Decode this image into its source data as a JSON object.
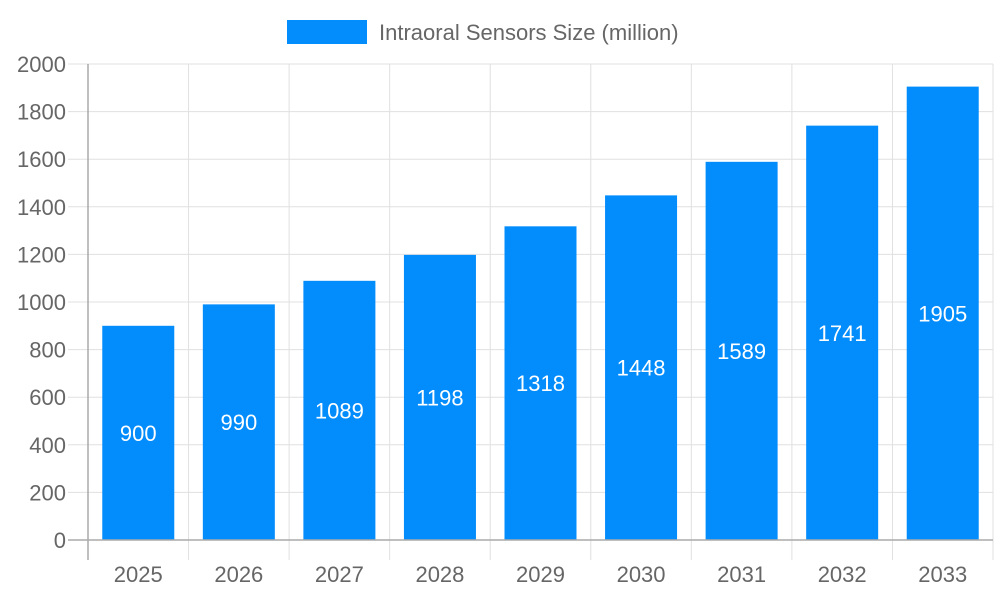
{
  "chart_data": {
    "type": "bar",
    "title": "",
    "xlabel": "",
    "ylabel": "",
    "categories": [
      "2025",
      "2026",
      "2027",
      "2028",
      "2029",
      "2030",
      "2031",
      "2032",
      "2033"
    ],
    "series": [
      {
        "name": "Intraoral Sensors Size (million)",
        "values": [
          900,
          990,
          1089,
          1198,
          1318,
          1448,
          1589,
          1741,
          1905
        ],
        "color": "#038cfc"
      }
    ],
    "ylim": [
      0,
      2000
    ],
    "yticks": [
      0,
      200,
      400,
      600,
      800,
      1000,
      1200,
      1400,
      1600,
      1800,
      2000
    ],
    "grid": true,
    "legend": "top",
    "data_labels": true
  }
}
